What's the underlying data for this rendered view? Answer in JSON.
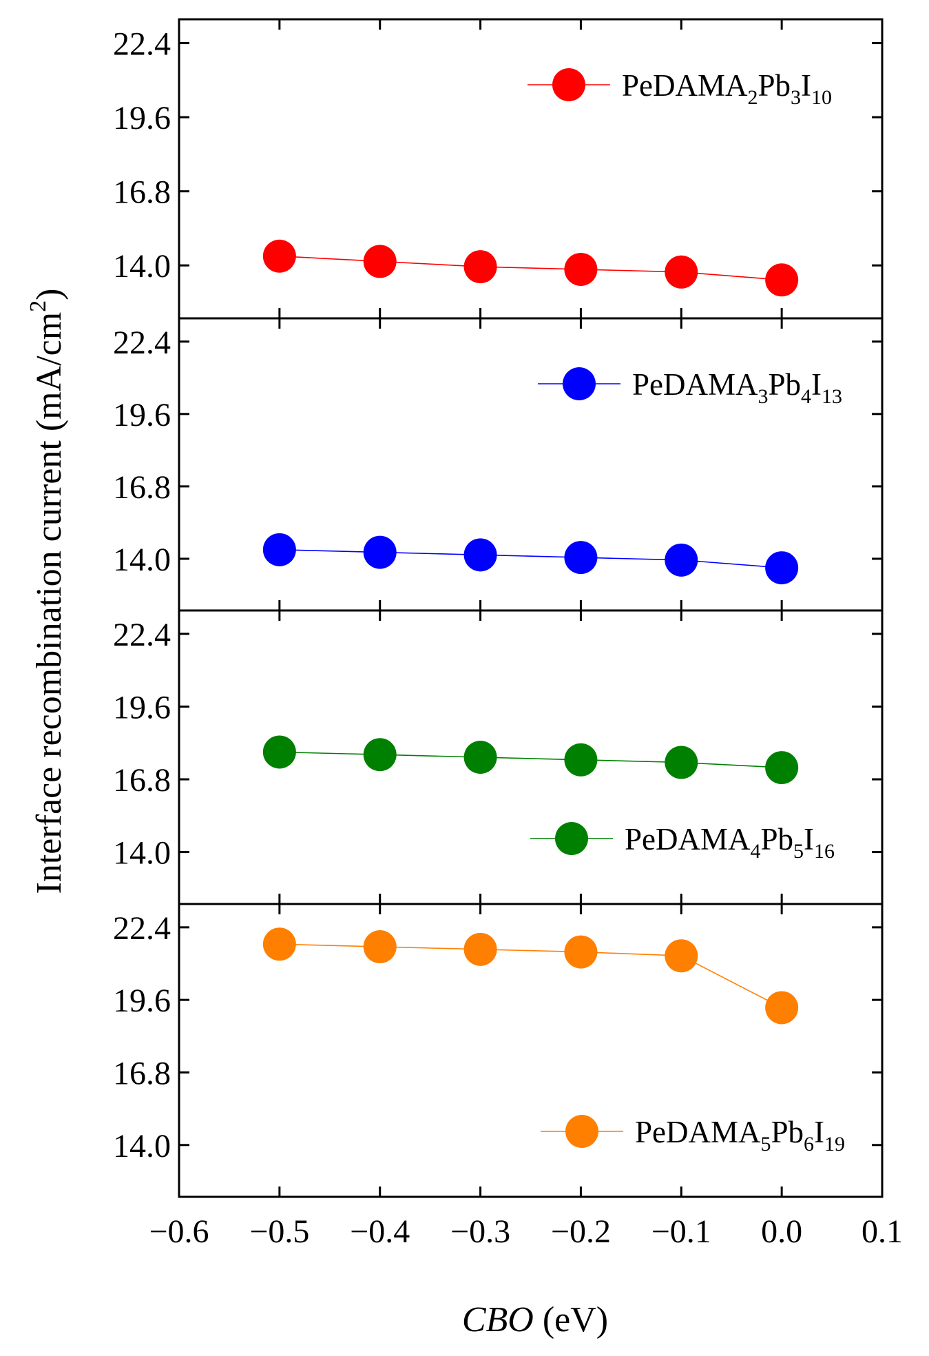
{
  "chart_data": {
    "type": "line",
    "layout": "stacked-panels",
    "ylabel_main": "Interface recombination current (mA/cm",
    "ylabel_sup": "2",
    "ylabel_close": ")",
    "xlabel_italic": "CBO",
    "xlabel_unit": " (eV)",
    "xlim": [
      -0.6,
      0.1
    ],
    "xticks": [
      -0.6,
      -0.5,
      -0.4,
      -0.3,
      -0.2,
      -0.1,
      0.0,
      0.1
    ],
    "xtick_labels": [
      "−0.6",
      "−0.5",
      "−0.4",
      "−0.3",
      "−0.2",
      "−0.1",
      "0.0",
      "0.1"
    ],
    "ylim": [
      12.0,
      23.3
    ],
    "yticks": [
      14.0,
      16.8,
      19.6,
      22.4
    ],
    "ytick_labels": [
      "14.0",
      "16.8",
      "19.6",
      "22.4"
    ],
    "x": [
      -0.5,
      -0.4,
      -0.3,
      -0.2,
      -0.1,
      0.0
    ],
    "series": [
      {
        "name": "PeDAMA2Pb3I10",
        "legend": [
          {
            "t": "PeDAMA"
          },
          {
            "t": "2",
            "s": "sub"
          },
          {
            "t": "Pb"
          },
          {
            "t": "3",
            "s": "sub"
          },
          {
            "t": "I"
          },
          {
            "t": "10",
            "s": "sub"
          }
        ],
        "legend_pos": "top-right",
        "color": "#ff0000",
        "values": [
          14.35,
          14.15,
          13.95,
          13.85,
          13.75,
          13.45
        ]
      },
      {
        "name": "PeDAMA3Pb4I13",
        "legend": [
          {
            "t": "PeDAMA"
          },
          {
            "t": "3",
            "s": "sub"
          },
          {
            "t": "Pb"
          },
          {
            "t": "4",
            "s": "sub"
          },
          {
            "t": "I"
          },
          {
            "t": "13",
            "s": "sub"
          }
        ],
        "legend_pos": "top-right",
        "color": "#0000ff",
        "values": [
          14.35,
          14.25,
          14.15,
          14.05,
          13.95,
          13.65
        ]
      },
      {
        "name": "PeDAMA4Pb5I16",
        "legend": [
          {
            "t": "PeDAMA"
          },
          {
            "t": "4",
            "s": "sub"
          },
          {
            "t": "Pb"
          },
          {
            "t": "5",
            "s": "sub"
          },
          {
            "t": "I"
          },
          {
            "t": "16",
            "s": "sub"
          }
        ],
        "legend_pos": "bottom-right",
        "color": "#008000",
        "values": [
          17.85,
          17.75,
          17.65,
          17.55,
          17.45,
          17.25
        ]
      },
      {
        "name": "PeDAMA5Pb6I19",
        "legend": [
          {
            "t": "PeDAMA"
          },
          {
            "t": "5",
            "s": "sub"
          },
          {
            "t": "Pb"
          },
          {
            "t": "6",
            "s": "sub"
          },
          {
            "t": "I"
          },
          {
            "t": "19",
            "s": "sub"
          }
        ],
        "legend_pos": "bottom-right",
        "color": "#ff7f00",
        "values": [
          21.75,
          21.65,
          21.55,
          21.45,
          21.3,
          19.3
        ]
      }
    ]
  }
}
